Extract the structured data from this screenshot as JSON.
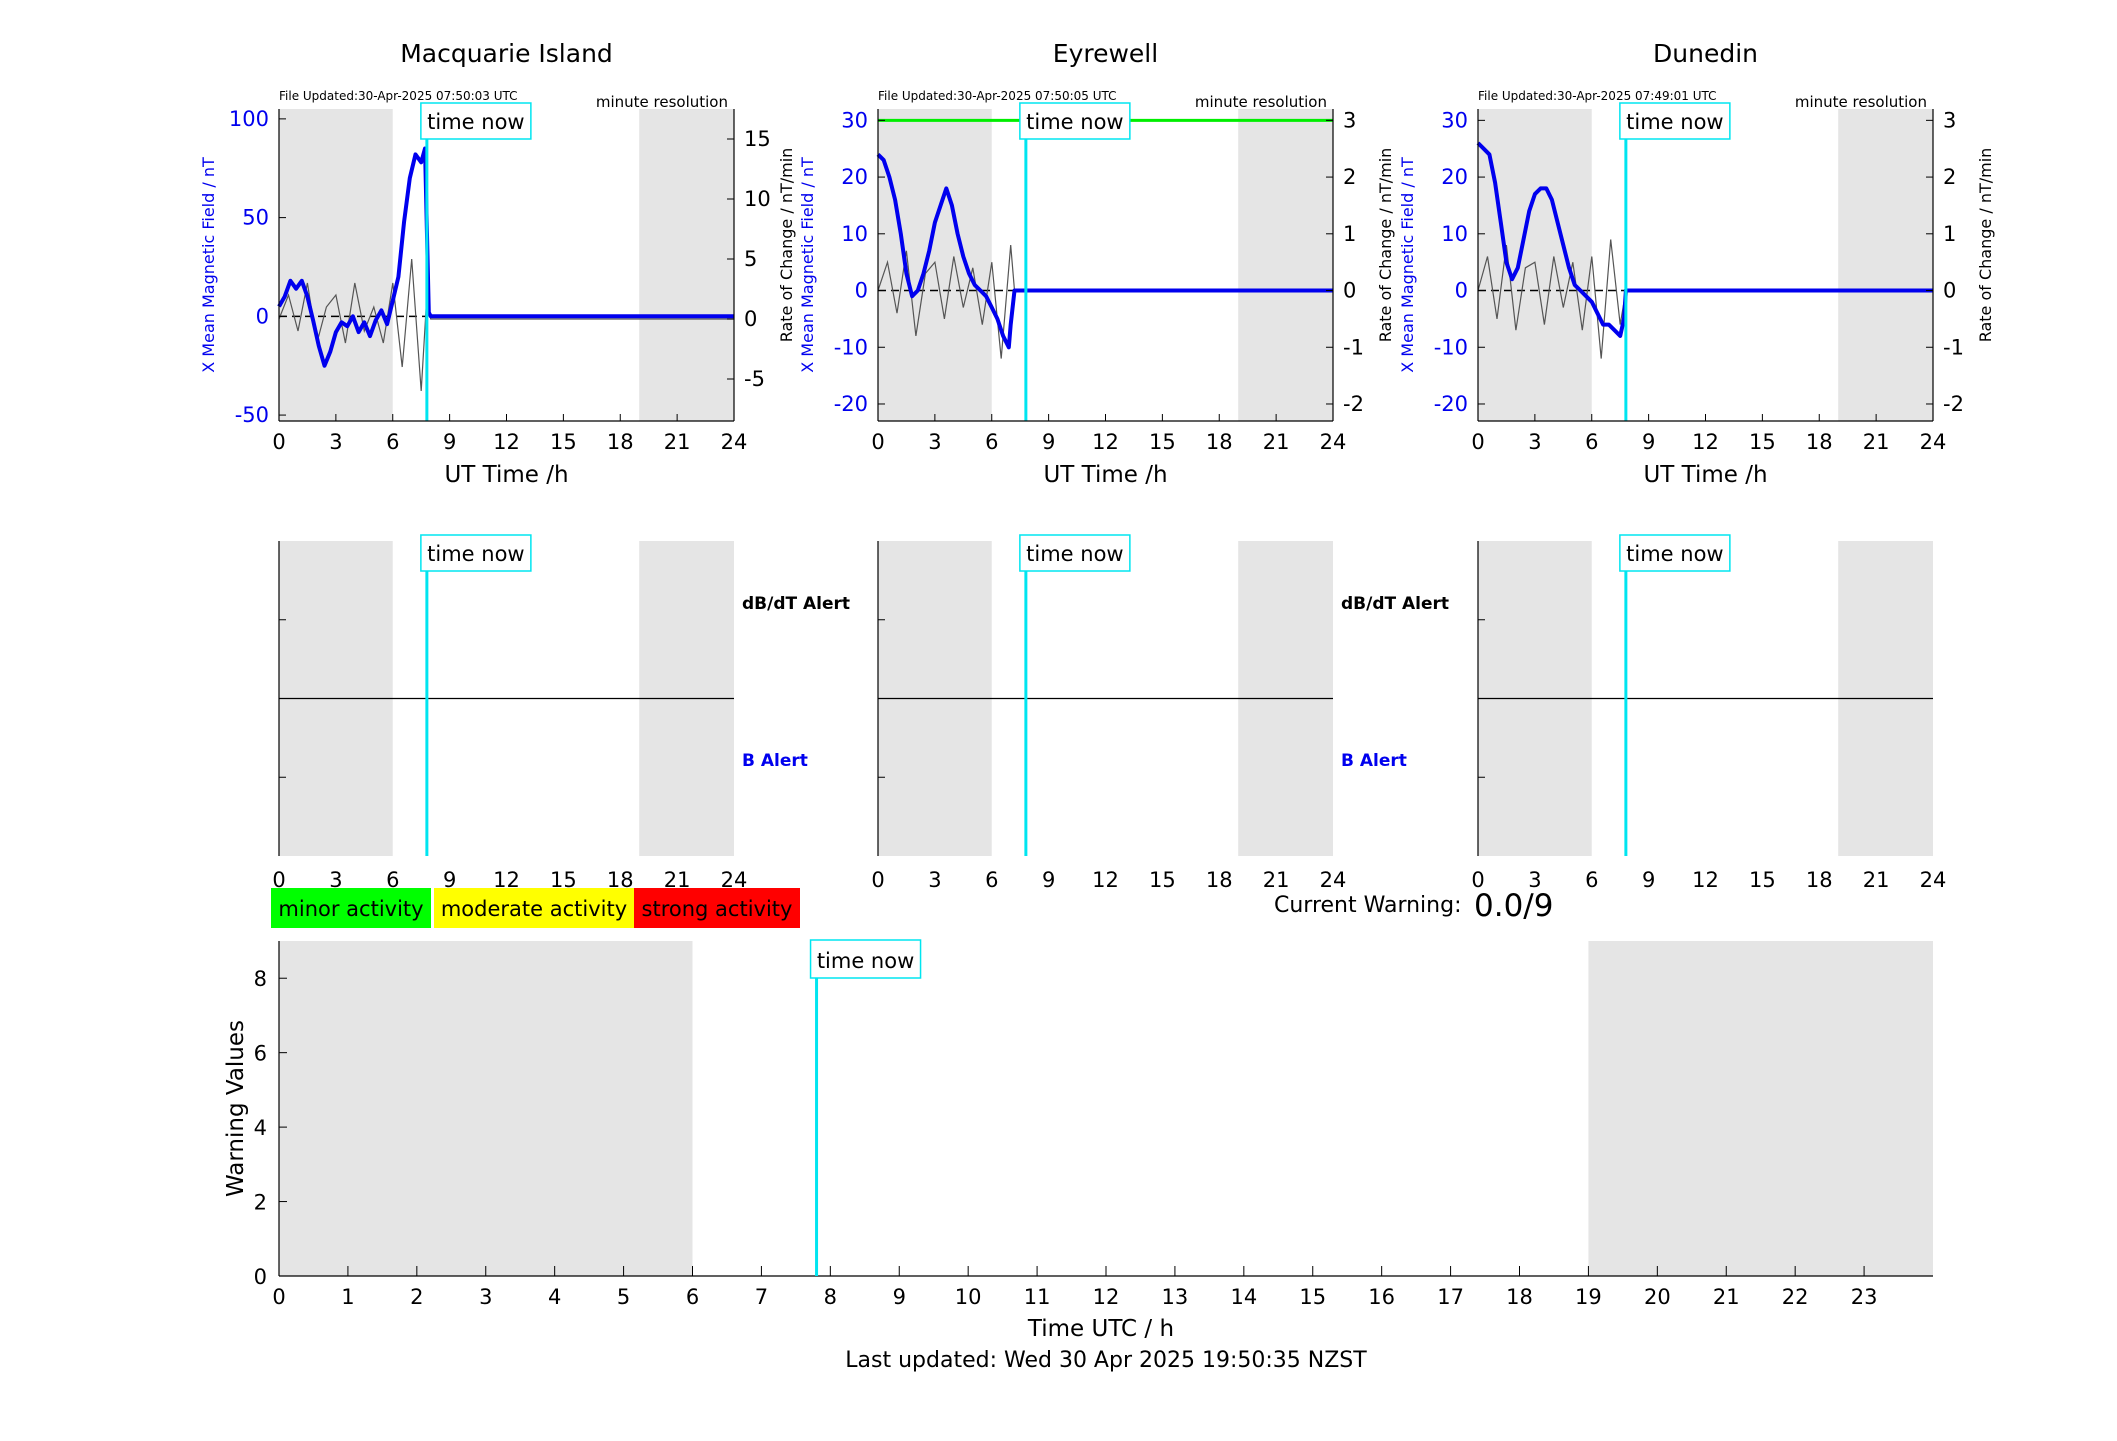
{
  "stations": [
    {
      "name": "Macquarie Island",
      "file_updated": "File Updated:30-Apr-2025 07:50:03 UTC",
      "resolution": "minute resolution",
      "left_ylabel": "X Mean Magnetic Field / nT",
      "right_ylabel": "Rate of Change / nT/min",
      "xlabel": "UT Time /h",
      "left_yticks": [
        -50,
        0,
        50,
        100
      ],
      "right_yticks": [
        -5,
        0,
        5,
        10,
        15
      ],
      "show_green_line": false,
      "dbdt_alert_label": "dB/dT Alert",
      "b_alert_label": "B Alert"
    },
    {
      "name": "Eyrewell",
      "file_updated": "File Updated:30-Apr-2025 07:50:05 UTC",
      "resolution": "minute resolution",
      "left_ylabel": "X Mean Magnetic Field / nT",
      "right_ylabel": "Rate of Change / nT/min",
      "xlabel": "UT Time /h",
      "left_yticks": [
        -20,
        -10,
        0,
        10,
        20,
        30
      ],
      "right_yticks": [
        -2,
        -1,
        0,
        1,
        2,
        3
      ],
      "show_green_line": true,
      "dbdt_alert_label": "dB/dT Alert",
      "b_alert_label": "B Alert"
    },
    {
      "name": "Dunedin",
      "file_updated": "File Updated:30-Apr-2025 07:49:01 UTC",
      "resolution": "minute resolution",
      "left_ylabel": "X Mean Magnetic Field / nT",
      "right_ylabel": "Rate of Change / nT/min",
      "xlabel": "UT Time /h",
      "left_yticks": [
        -20,
        -10,
        0,
        10,
        20,
        30
      ],
      "right_yticks": [
        -2,
        -1,
        0,
        1,
        2,
        3
      ],
      "show_green_line": false,
      "dbdt_alert_label": "dB/dT Alert",
      "b_alert_label": "B Alert"
    }
  ],
  "time_now_label": "time now",
  "time_now_hour": 7.8,
  "night_shading_hours": [
    [
      0,
      6
    ],
    [
      19,
      24
    ]
  ],
  "legend": [
    {
      "label": "minor activity",
      "color": "#00ff00"
    },
    {
      "label": "moderate activity",
      "color": "#ffff00"
    },
    {
      "label": "strong activity",
      "color": "#ff0000"
    }
  ],
  "current_warning": {
    "label": "Current Warning:",
    "value": "0.0/9"
  },
  "warning_chart": {
    "ylabel": "Warning Values",
    "xlabel": "Time UTC / h",
    "yticks": [
      0,
      2,
      4,
      6,
      8
    ],
    "xticks": [
      0,
      1,
      2,
      3,
      4,
      5,
      6,
      7,
      8,
      9,
      10,
      11,
      12,
      13,
      14,
      15,
      16,
      17,
      18,
      19,
      20,
      21,
      22,
      23
    ]
  },
  "footer": "Last updated: Wed 30 Apr 2025 19:50:35 NZST",
  "colors": {
    "field": "#0000ee",
    "rate": "#555555",
    "time_now": "#00e5f0",
    "night": "#e5e5e5",
    "green_line": "#00ee00"
  },
  "chart_data": [
    {
      "type": "line",
      "title": "Macquarie Island",
      "xlabel": "UT Time /h",
      "ylabel": "X Mean Magnetic Field / nT",
      "y2label": "Rate of Change / nT/min",
      "xlim": [
        0,
        24
      ],
      "ylim": [
        -53,
        105
      ],
      "y2lim": [
        -8.5,
        17.5
      ],
      "xticks": [
        0,
        3,
        6,
        9,
        12,
        15,
        18,
        21,
        24
      ],
      "series": [
        {
          "axis": "left",
          "x": [
            0,
            0.3,
            0.6,
            0.9,
            1.2,
            1.5,
            1.8,
            2.1,
            2.4,
            2.7,
            3.0,
            3.3,
            3.6,
            3.9,
            4.2,
            4.5,
            4.8,
            5.1,
            5.4,
            5.7,
            6.0,
            6.3,
            6.6,
            6.9,
            7.2,
            7.5,
            7.7,
            7.9,
            8.0,
            24
          ],
          "y": [
            5,
            10,
            18,
            14,
            18,
            10,
            -2,
            -15,
            -25,
            -18,
            -8,
            -3,
            -5,
            0,
            -8,
            -3,
            -10,
            -2,
            3,
            -4,
            8,
            20,
            48,
            70,
            82,
            78,
            85,
            2,
            0,
            0
          ]
        },
        {
          "axis": "right",
          "note_x": [
            0,
            7.7
          ],
          "x": [
            0,
            0.5,
            1,
            1.5,
            2,
            2.5,
            3,
            3.5,
            4,
            4.5,
            5,
            5.5,
            6,
            6.5,
            7,
            7.5,
            7.8,
            8,
            24
          ],
          "y": [
            0,
            2,
            -1,
            3,
            -2,
            1,
            2,
            -2,
            3,
            -1,
            1,
            -2,
            3,
            -4,
            5,
            -6,
            2,
            0,
            0
          ]
        }
      ]
    },
    {
      "type": "line",
      "title": "Eyrewell",
      "xlabel": "UT Time /h",
      "ylabel": "X Mean Magnetic Field / nT",
      "y2label": "Rate of Change / nT/min",
      "xlim": [
        0,
        24
      ],
      "ylim": [
        -23,
        32
      ],
      "y2lim": [
        -2.3,
        3.2
      ],
      "xticks": [
        0,
        3,
        6,
        9,
        12,
        15,
        18,
        21,
        24
      ],
      "series": [
        {
          "axis": "left",
          "x": [
            0,
            0.3,
            0.6,
            0.9,
            1.2,
            1.5,
            1.8,
            2.1,
            2.4,
            2.7,
            3.0,
            3.3,
            3.6,
            3.9,
            4.2,
            4.5,
            4.8,
            5.1,
            5.4,
            5.7,
            6.0,
            6.3,
            6.6,
            6.9,
            7.0,
            7.2,
            7.8,
            24
          ],
          "y": [
            24,
            23,
            20,
            16,
            10,
            3,
            -1,
            0,
            3,
            7,
            12,
            15,
            18,
            15,
            10,
            6,
            3,
            1,
            0,
            -1,
            -3,
            -5,
            -8,
            -10,
            -6,
            0,
            0,
            0
          ]
        },
        {
          "axis": "right",
          "x": [
            0,
            0.5,
            1,
            1.5,
            2,
            2.5,
            3,
            3.5,
            4,
            4.5,
            5,
            5.5,
            6,
            6.5,
            7,
            7.2,
            24
          ],
          "y": [
            0,
            0.5,
            -0.4,
            0.7,
            -0.8,
            0.3,
            0.5,
            -0.5,
            0.6,
            -0.3,
            0.4,
            -0.6,
            0.5,
            -1.2,
            0.8,
            0,
            0
          ]
        },
        {
          "axis": "right",
          "name_hidden": true,
          "x": [
            0,
            24
          ],
          "y": [
            3,
            3
          ]
        }
      ]
    },
    {
      "type": "line",
      "title": "Dunedin",
      "xlabel": "UT Time /h",
      "ylabel": "X Mean Magnetic Field / nT",
      "y2label": "Rate of Change / nT/min",
      "xlim": [
        0,
        24
      ],
      "ylim": [
        -23,
        32
      ],
      "y2lim": [
        -2.3,
        3.2
      ],
      "xticks": [
        0,
        3,
        6,
        9,
        12,
        15,
        18,
        21,
        24
      ],
      "series": [
        {
          "axis": "left",
          "x": [
            0,
            0.3,
            0.6,
            0.9,
            1.2,
            1.5,
            1.8,
            2.1,
            2.4,
            2.7,
            3.0,
            3.3,
            3.6,
            3.9,
            4.2,
            4.5,
            4.8,
            5.1,
            5.4,
            5.7,
            6.0,
            6.3,
            6.6,
            6.9,
            7.2,
            7.5,
            7.7,
            7.8,
            24
          ],
          "y": [
            26,
            25,
            24,
            19,
            12,
            5,
            2,
            4,
            9,
            14,
            17,
            18,
            18,
            16,
            12,
            8,
            4,
            1,
            0,
            -1,
            -2,
            -4,
            -6,
            -6,
            -7,
            -8,
            -5,
            0,
            0
          ]
        },
        {
          "axis": "right",
          "x": [
            0,
            0.5,
            1,
            1.5,
            2,
            2.5,
            3,
            3.5,
            4,
            4.5,
            5,
            5.5,
            6,
            6.5,
            7,
            7.5,
            7.8,
            24
          ],
          "y": [
            0,
            0.6,
            -0.5,
            0.8,
            -0.7,
            0.4,
            0.5,
            -0.6,
            0.6,
            -0.3,
            0.5,
            -0.7,
            0.6,
            -1.2,
            0.9,
            -0.6,
            0,
            0
          ]
        }
      ]
    },
    {
      "type": "line",
      "title": "",
      "xlabel": "Time UTC / h",
      "ylabel": "Warning Values",
      "xlim": [
        0,
        24
      ],
      "ylim": [
        0,
        9
      ],
      "series": []
    }
  ]
}
